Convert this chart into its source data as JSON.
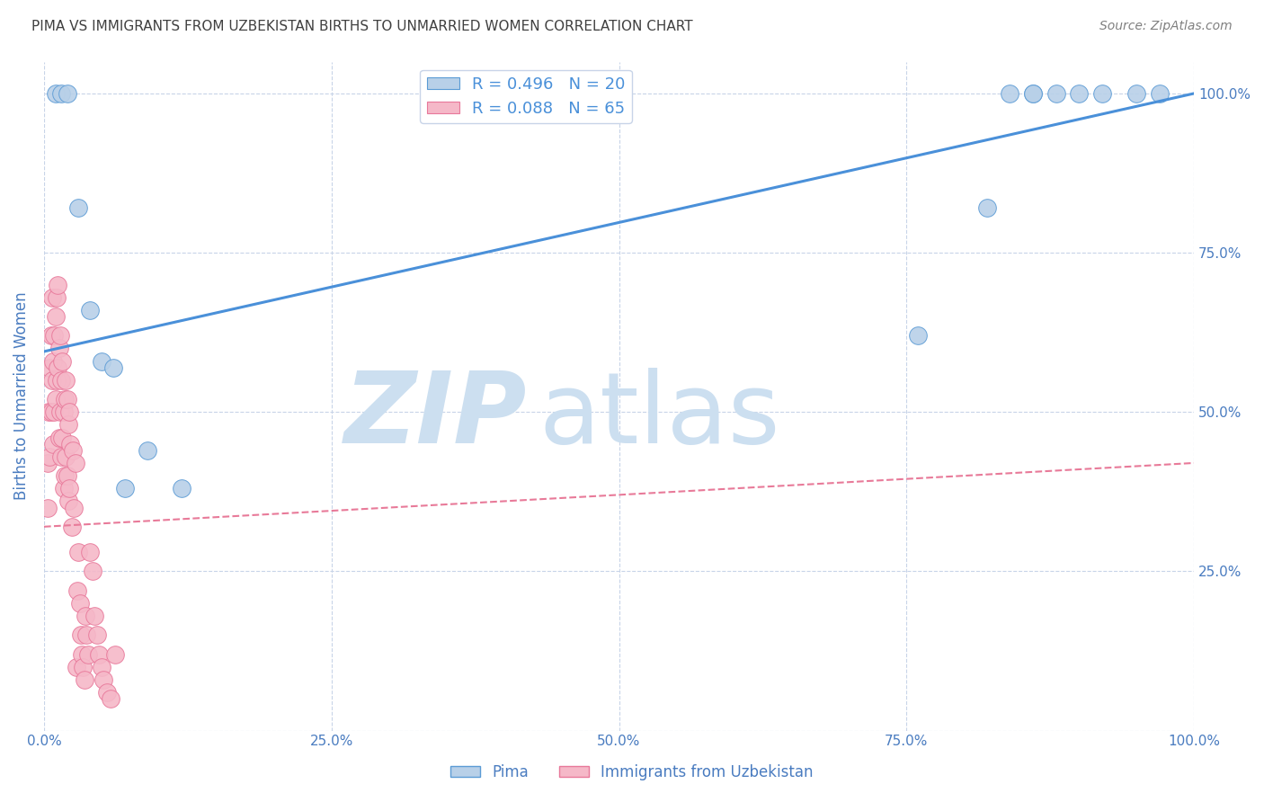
{
  "title": "PIMA VS IMMIGRANTS FROM UZBEKISTAN BIRTHS TO UNMARRIED WOMEN CORRELATION CHART",
  "source": "Source: ZipAtlas.com",
  "ylabel": "Births to Unmarried Women",
  "pima_R": 0.496,
  "pima_N": 20,
  "uzbek_R": 0.088,
  "uzbek_N": 65,
  "pima_color": "#b8d0e8",
  "uzbek_color": "#f5b8c8",
  "pima_edge_color": "#5b9bd5",
  "uzbek_edge_color": "#e8789a",
  "pima_line_color": "#4a90d9",
  "uzbek_line_color": "#e87a99",
  "watermark_zip_color": "#ccdff0",
  "watermark_atlas_color": "#ccdff0",
  "background_color": "#ffffff",
  "grid_color": "#c8d4e8",
  "title_color": "#404040",
  "source_color": "#808080",
  "axis_label_color": "#4a7cc0",
  "tick_label_color": "#4a7cc0",
  "pima_scatter_x": [
    0.01,
    0.015,
    0.02,
    0.03,
    0.04,
    0.05,
    0.06,
    0.07,
    0.09,
    0.12,
    0.76,
    0.82,
    0.84,
    0.86,
    0.86,
    0.88,
    0.9,
    0.92,
    0.95,
    0.97
  ],
  "pima_scatter_y": [
    1.0,
    1.0,
    1.0,
    0.82,
    0.66,
    0.58,
    0.57,
    0.38,
    0.44,
    0.38,
    0.62,
    0.82,
    1.0,
    1.0,
    1.0,
    1.0,
    1.0,
    1.0,
    1.0,
    1.0
  ],
  "uzbek_scatter_x": [
    0.003,
    0.003,
    0.004,
    0.005,
    0.005,
    0.006,
    0.006,
    0.007,
    0.007,
    0.008,
    0.008,
    0.009,
    0.009,
    0.01,
    0.01,
    0.011,
    0.011,
    0.012,
    0.012,
    0.013,
    0.013,
    0.014,
    0.014,
    0.015,
    0.015,
    0.016,
    0.016,
    0.017,
    0.017,
    0.018,
    0.018,
    0.019,
    0.019,
    0.02,
    0.02,
    0.021,
    0.021,
    0.022,
    0.022,
    0.023,
    0.024,
    0.025,
    0.026,
    0.027,
    0.028,
    0.029,
    0.03,
    0.031,
    0.032,
    0.033,
    0.034,
    0.035,
    0.036,
    0.037,
    0.038,
    0.04,
    0.042,
    0.044,
    0.046,
    0.048,
    0.05,
    0.052,
    0.055,
    0.058,
    0.062
  ],
  "uzbek_scatter_y": [
    0.42,
    0.35,
    0.5,
    0.57,
    0.43,
    0.62,
    0.5,
    0.68,
    0.55,
    0.58,
    0.45,
    0.62,
    0.5,
    0.65,
    0.52,
    0.68,
    0.55,
    0.7,
    0.57,
    0.6,
    0.46,
    0.62,
    0.5,
    0.55,
    0.43,
    0.58,
    0.46,
    0.5,
    0.38,
    0.52,
    0.4,
    0.55,
    0.43,
    0.52,
    0.4,
    0.48,
    0.36,
    0.5,
    0.38,
    0.45,
    0.32,
    0.44,
    0.35,
    0.42,
    0.1,
    0.22,
    0.28,
    0.2,
    0.15,
    0.12,
    0.1,
    0.08,
    0.18,
    0.15,
    0.12,
    0.28,
    0.25,
    0.18,
    0.15,
    0.12,
    0.1,
    0.08,
    0.06,
    0.05,
    0.12
  ],
  "xlim": [
    0.0,
    1.0
  ],
  "ylim": [
    0.0,
    1.0
  ],
  "pima_line_x0": 0.0,
  "pima_line_y0": 0.595,
  "pima_line_x1": 1.0,
  "pima_line_y1": 1.0,
  "uzbek_line_x0": 0.0,
  "uzbek_line_y0": 0.32,
  "uzbek_line_x1": 1.0,
  "uzbek_line_y1": 0.42
}
